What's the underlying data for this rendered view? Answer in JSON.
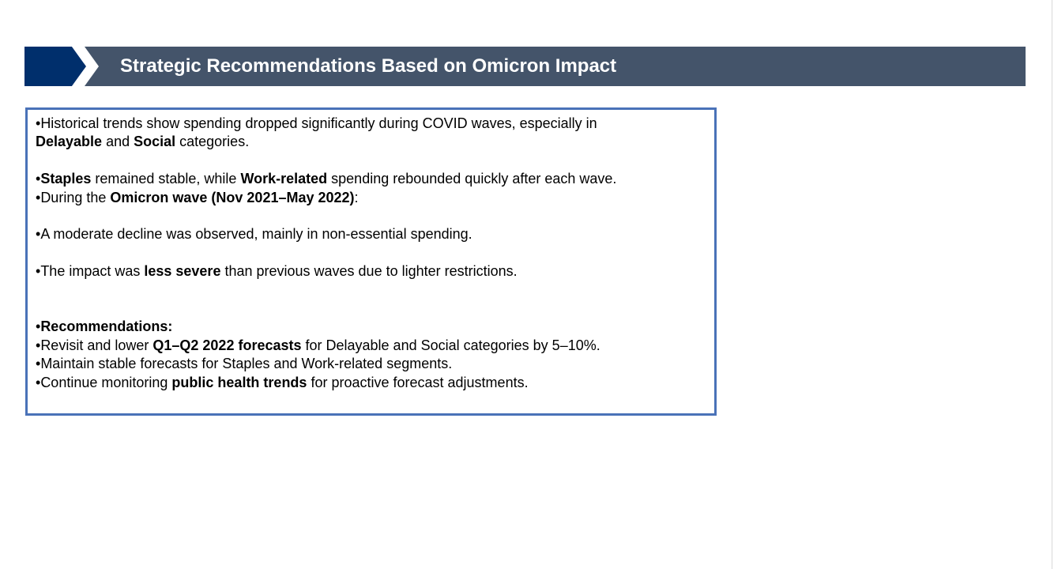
{
  "header": {
    "title": "Strategic Recommendations Based on Omicron Impact",
    "colors": {
      "bar": "#44546a",
      "chevron": "#002f6c",
      "title_text": "#ffffff"
    }
  },
  "content": {
    "border_color": "#4a72b8",
    "line1": {
      "bullet": "•",
      "text": "Historical trends show spending dropped significantly during COVID waves, especially in"
    },
    "line2": {
      "bold1": "Delayable",
      "t1": " and ",
      "bold2": "Social",
      "t2": " categories."
    },
    "line3": {
      "bullet": "•",
      "bold1": "Staples",
      "t1": " remained stable, while ",
      "bold2": "Work-related",
      "t2": " spending rebounded quickly after each wave."
    },
    "line4": {
      "bullet": "•",
      "t1": "During the ",
      "bold1": "Omicron wave (Nov 2021–May 2022)",
      "t2": ":"
    },
    "line5": {
      "bullet": "•",
      "text": "A moderate decline was observed, mainly in non-essential spending."
    },
    "line6": {
      "bullet": "•",
      "t1": "The impact was ",
      "bold1": "less severe",
      "t2": " than previous waves due to lighter restrictions."
    },
    "line7": {
      "bullet": "•",
      "bold1": "Recommendations:"
    },
    "line8": {
      "bullet": "•",
      "t1": "Revisit and lower ",
      "bold1": "Q1–Q2 2022 forecasts",
      "t2": " for Delayable and Social categories by 5–10%."
    },
    "line9": {
      "bullet": "•",
      "text": "Maintain stable forecasts for Staples and Work-related segments."
    },
    "line10": {
      "bullet": "•",
      "t1": "Continue monitoring ",
      "bold1": "public health trends",
      "t2": " for proactive forecast adjustments."
    }
  }
}
